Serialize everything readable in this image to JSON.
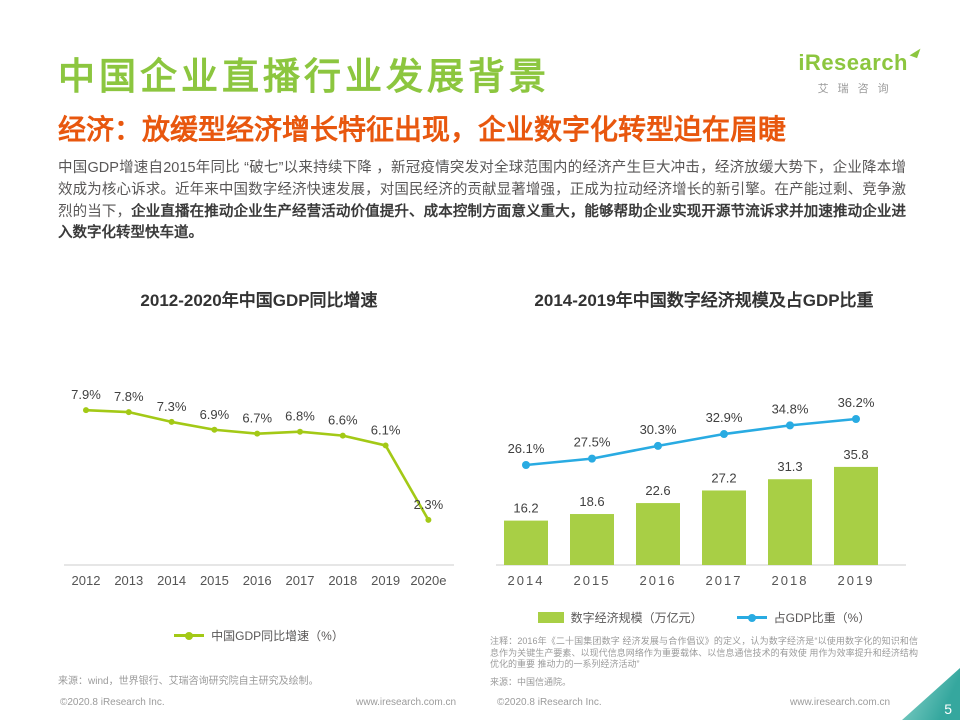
{
  "page": {
    "title": "中国企业直播行业发展背景",
    "subtitle": "经济：放缓型经济增长特征出现，企业数字化转型迫在眉睫",
    "body_normal": "中国GDP增速自2015年同比 “破七”以来持续下降 ，新冠疫情突发对全球范围内的经济产生巨大冲击，经济放缓大势下，企业降本增效成为核心诉求。近年来中国数字经济快速发展，对国民经济的贡献显著增强，正成为拉动经济增长的新引擎。在产能过剩、竞争激烈的当下，",
    "body_bold": "企业直播在推动企业生产经营活动价值提升、成本控制方面意义重大，能够帮助企业实现开源节流诉求并加速推动企业进入数字化转型快车道。",
    "page_number": "5"
  },
  "logo": {
    "brand": "iResearch",
    "brand_cn": "艾瑞咨询"
  },
  "colors": {
    "brand_green": "#8CC63F",
    "accent_orange": "#E8570E",
    "gdp_line_green": "#A3C916",
    "bar_green": "#A8CF45",
    "ratio_line_blue": "#29ABE2",
    "corner_teal": "#3BAFA6"
  },
  "charts": {
    "left": {
      "source_note": "来源：wind，世界银行、艾瑞咨询研究院自主研究及绘制。"
    },
    "right": {
      "note": "注释：2016年《二十国集团数字 经济发展与合作倡议》的定义，认为数字经济是“以使用数字化的知识和信息作为关键生产要素、以现代信息网络作为重要载体、以信息通信技术的有效使 用作为效率提升和经济结构优化的重要 推动力的一系列经济活动”",
      "source_note": "来源：中国信通院。"
    }
  },
  "footer": {
    "copyright_left": "©2020.8 iResearch Inc.",
    "site_left": "www.iresearch.com.cn",
    "copyright_right": "©2020.8 iResearch Inc.",
    "site_right": "www.iresearch.com.cn"
  },
  "chart_data": [
    {
      "type": "line",
      "title": "2012-2020年中国GDP同比增速",
      "categories": [
        "2012",
        "2013",
        "2014",
        "2015",
        "2016",
        "2017",
        "2018",
        "2019",
        "2020e"
      ],
      "values": [
        7.9,
        7.8,
        7.3,
        6.9,
        6.7,
        6.8,
        6.6,
        6.1,
        2.3
      ],
      "point_labels": [
        "7.9%",
        "7.8%",
        "7.3%",
        "6.9%",
        "6.7%",
        "6.8%",
        "6.6%",
        "6.1%",
        "2.3%"
      ],
      "legend": "中国GDP同比增速（%）",
      "color": "#A3C916",
      "xlabel": "",
      "ylabel": "",
      "ylim": [
        0,
        9
      ],
      "grid": false,
      "legend_position": "bottom"
    },
    {
      "type": "bar+line",
      "title": "2014-2019年中国数字经济规模及占GDP比重",
      "categories": [
        "2014",
        "2015",
        "2016",
        "2017",
        "2018",
        "2019"
      ],
      "series": [
        {
          "name": "数字经济规模（万亿元）",
          "type": "bar",
          "values": [
            16.2,
            18.6,
            22.6,
            27.2,
            31.3,
            35.8
          ],
          "point_labels": [
            "16.2",
            "18.6",
            "22.6",
            "27.2",
            "31.3",
            "35.8"
          ],
          "color": "#A8CF45"
        },
        {
          "name": "占GDP比重（%）",
          "type": "line",
          "values": [
            26.1,
            27.5,
            30.3,
            32.9,
            34.8,
            36.2
          ],
          "point_labels": [
            "26.1%",
            "27.5%",
            "30.3%",
            "32.9%",
            "34.8%",
            "36.2%"
          ],
          "color": "#29ABE2"
        }
      ],
      "ylim_bar": [
        0,
        40
      ],
      "grid": false,
      "legend_position": "bottom"
    }
  ]
}
